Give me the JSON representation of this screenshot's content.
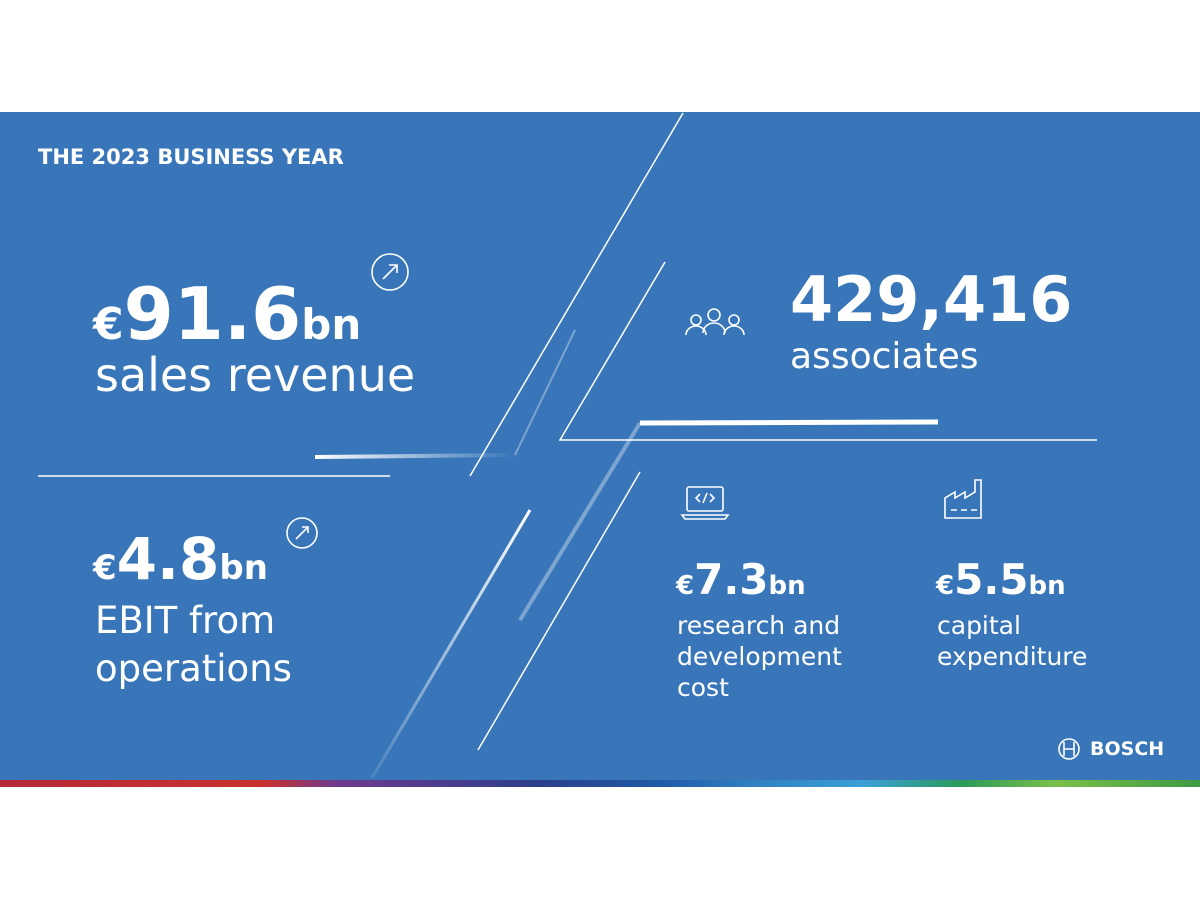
{
  "header": {
    "title": "THE 2023 BUSINESS YEAR"
  },
  "figures": [
    {
      "currency": "€",
      "amount": "91.6",
      "unit": "bn",
      "label": "sales revenue"
    },
    {
      "amount": "429,416",
      "label": "associates"
    },
    {
      "currency": "€",
      "amount": "4.8",
      "unit": "bn",
      "label": "EBIT from operations"
    },
    {
      "currency": "€",
      "amount": "7.3",
      "unit": "bn",
      "label": "research and development cost"
    },
    {
      "currency": "€",
      "amount": "5.5",
      "unit": "bn",
      "label": "capital expenditure"
    }
  ],
  "brand": "BOSCH"
}
